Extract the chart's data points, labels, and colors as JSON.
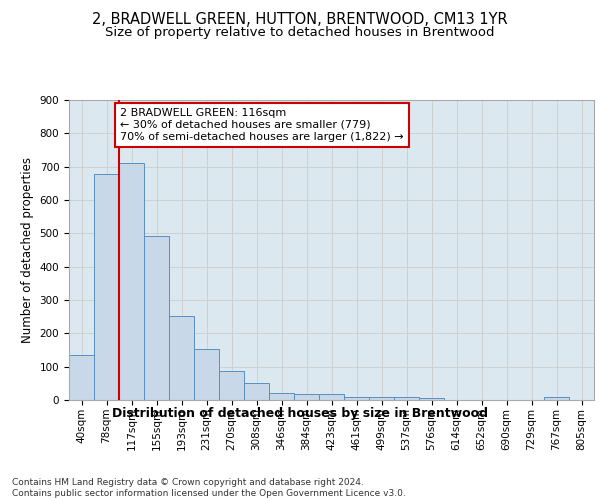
{
  "title": "2, BRADWELL GREEN, HUTTON, BRENTWOOD, CM13 1YR",
  "subtitle": "Size of property relative to detached houses in Brentwood",
  "xlabel": "Distribution of detached houses by size in Brentwood",
  "ylabel": "Number of detached properties",
  "bar_labels": [
    "40sqm",
    "78sqm",
    "117sqm",
    "155sqm",
    "193sqm",
    "231sqm",
    "270sqm",
    "308sqm",
    "346sqm",
    "384sqm",
    "423sqm",
    "461sqm",
    "499sqm",
    "537sqm",
    "576sqm",
    "614sqm",
    "652sqm",
    "690sqm",
    "729sqm",
    "767sqm",
    "805sqm"
  ],
  "bar_values": [
    135,
    679,
    710,
    493,
    252,
    152,
    88,
    50,
    22,
    18,
    18,
    10,
    10,
    10,
    7,
    0,
    0,
    0,
    0,
    10,
    0
  ],
  "bar_color": "#c8d8e8",
  "bar_edge_color": "#5a8fc0",
  "annotation_text": "2 BRADWELL GREEN: 116sqm\n← 30% of detached houses are smaller (779)\n70% of semi-detached houses are larger (1,822) →",
  "annotation_box_color": "#ffffff",
  "annotation_box_edge_color": "#cc0000",
  "vline_color": "#cc0000",
  "ylim": [
    0,
    900
  ],
  "yticks": [
    0,
    100,
    200,
    300,
    400,
    500,
    600,
    700,
    800,
    900
  ],
  "grid_color": "#cccccc",
  "background_color": "#dce8f0",
  "footer_text": "Contains HM Land Registry data © Crown copyright and database right 2024.\nContains public sector information licensed under the Open Government Licence v3.0.",
  "title_fontsize": 10.5,
  "subtitle_fontsize": 9.5,
  "xlabel_fontsize": 9,
  "ylabel_fontsize": 8.5,
  "tick_fontsize": 7.5,
  "annotation_fontsize": 8,
  "footer_fontsize": 6.5
}
